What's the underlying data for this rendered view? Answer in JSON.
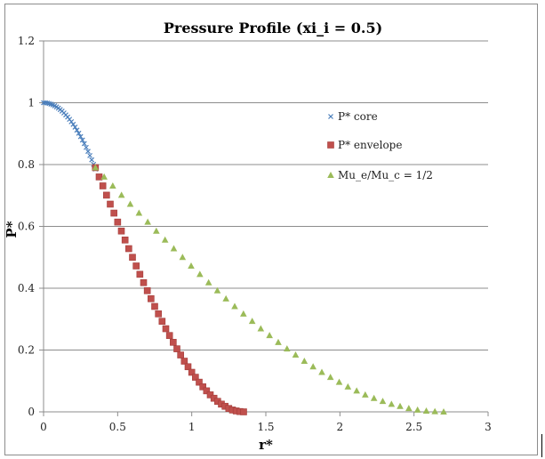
{
  "chart_data": {
    "type": "scatter",
    "title": "Pressure Profile (xi_i = 0.5)",
    "xlabel": "r*",
    "ylabel": "P*",
    "xlim": [
      0,
      3
    ],
    "ylim": [
      0,
      1.2
    ],
    "xticks": [
      "0",
      "0.5",
      "1",
      "1.5",
      "2",
      "2.5",
      "3"
    ],
    "yticks": [
      "0",
      "0.2",
      "0.4",
      "0.6",
      "0.8",
      "1",
      "1.2"
    ],
    "grid": "horizontal",
    "legend_position": "right",
    "series": [
      {
        "name": "P* core",
        "marker": "x",
        "color": "#4a7ebb",
        "x": [
          0,
          0.0125,
          0.025,
          0.0375,
          0.05,
          0.0625,
          0.075,
          0.0875,
          0.1,
          0.1125,
          0.125,
          0.1375,
          0.15,
          0.1625,
          0.175,
          0.1875,
          0.2,
          0.2125,
          0.225,
          0.2375,
          0.25,
          0.2625,
          0.275,
          0.2875,
          0.3,
          0.3125,
          0.325,
          0.3375,
          0.35
        ],
        "y": [
          1,
          0.9997,
          0.9989,
          0.9975,
          0.9956,
          0.9932,
          0.9902,
          0.9866,
          0.9825,
          0.9779,
          0.9727,
          0.9669,
          0.9606,
          0.9538,
          0.9464,
          0.9385,
          0.93,
          0.921,
          0.9114,
          0.9013,
          0.8906,
          0.8794,
          0.8677,
          0.8554,
          0.8425,
          0.8291,
          0.8152,
          0.8007,
          0.7856
        ]
      },
      {
        "name": "P* envelope",
        "marker": "square",
        "color": "#c0504d",
        "x": [
          0.35,
          0.375,
          0.4,
          0.425,
          0.45,
          0.475,
          0.5,
          0.525,
          0.55,
          0.575,
          0.6,
          0.625,
          0.65,
          0.675,
          0.7,
          0.725,
          0.75,
          0.775,
          0.8,
          0.825,
          0.85,
          0.875,
          0.9,
          0.925,
          0.95,
          0.975,
          1.0,
          1.025,
          1.05,
          1.075,
          1.1,
          1.125,
          1.15,
          1.175,
          1.2,
          1.225,
          1.25,
          1.275,
          1.3,
          1.325,
          1.35
        ],
        "y": [
          0.79,
          0.76,
          0.731,
          0.701,
          0.672,
          0.643,
          0.614,
          0.585,
          0.556,
          0.528,
          0.5,
          0.472,
          0.445,
          0.418,
          0.392,
          0.366,
          0.341,
          0.317,
          0.293,
          0.269,
          0.247,
          0.225,
          0.204,
          0.184,
          0.164,
          0.146,
          0.128,
          0.112,
          0.096,
          0.081,
          0.068,
          0.055,
          0.044,
          0.034,
          0.025,
          0.018,
          0.011,
          0.006,
          0.003,
          0.001,
          0
        ]
      },
      {
        "name": "Mu_e/Mu_c = 1/2",
        "marker": "triangle",
        "color": "#9bbb59",
        "x": [
          0.35,
          0.409,
          0.467,
          0.526,
          0.585,
          0.644,
          0.703,
          0.761,
          0.82,
          0.879,
          0.938,
          0.996,
          1.055,
          1.114,
          1.173,
          1.231,
          1.29,
          1.349,
          1.408,
          1.466,
          1.525,
          1.584,
          1.643,
          1.701,
          1.76,
          1.819,
          1.878,
          1.936,
          1.995,
          2.054,
          2.113,
          2.171,
          2.23,
          2.289,
          2.348,
          2.406,
          2.465,
          2.524,
          2.583,
          2.641,
          2.7
        ],
        "y": [
          0.79,
          0.76,
          0.731,
          0.701,
          0.672,
          0.643,
          0.614,
          0.585,
          0.556,
          0.528,
          0.5,
          0.472,
          0.445,
          0.418,
          0.392,
          0.366,
          0.341,
          0.317,
          0.293,
          0.269,
          0.247,
          0.225,
          0.204,
          0.184,
          0.164,
          0.146,
          0.128,
          0.112,
          0.096,
          0.081,
          0.068,
          0.055,
          0.044,
          0.034,
          0.025,
          0.018,
          0.011,
          0.006,
          0.003,
          0.001,
          0
        ]
      }
    ]
  }
}
